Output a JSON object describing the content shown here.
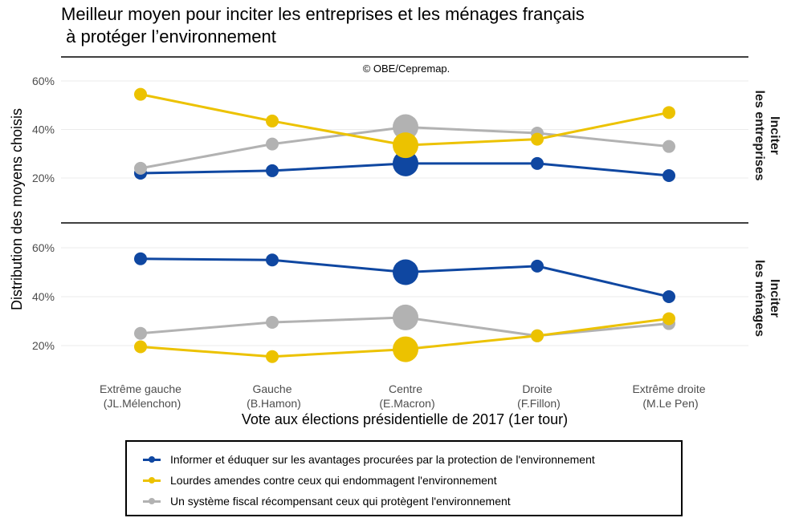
{
  "title": "Meilleur moyen pour inciter les entreprises et les ménages français\n à protéger l’environnement",
  "chart_data": {
    "type": "line",
    "title": "Meilleur moyen pour inciter les entreprises et les ménages français à protéger l’environnement",
    "caption": "© OBE/Cepremap.",
    "xlabel": "Vote aux élections présidentielle de 2017 (1er tour)",
    "ylabel": "Distribution des moyens choisis",
    "categories": [
      [
        "Extrême gauche",
        "(JL.Mélenchon)"
      ],
      [
        "Gauche",
        "(B.Hamon)"
      ],
      [
        "Centre",
        "(E.Macron)"
      ],
      [
        "Droite",
        "(F.Fillon)"
      ],
      [
        "Extrême droite",
        "(M.Le Pen)"
      ]
    ],
    "highlighted_category": 2,
    "yticks": [
      "20%",
      "40%",
      "60%"
    ],
    "ytick_values": [
      20,
      40,
      60
    ],
    "ylim": [
      9,
      66
    ],
    "panels": [
      {
        "strip_label": [
          "Inciter",
          "les entreprises"
        ],
        "series": [
          {
            "name": "Informer et éduquer sur les avantages procurées par la protection de l'environnement",
            "values": [
              22,
              23,
              26,
              26,
              21
            ]
          },
          {
            "name": "Lourdes amendes contre ceux qui endommagent l'environnement",
            "values": [
              54.5,
              43.5,
              33.5,
              36,
              47
            ]
          },
          {
            "name": "Un système fiscal récompensant ceux qui protègent l'environnement",
            "values": [
              24,
              34,
              41,
              38.5,
              33
            ]
          }
        ]
      },
      {
        "strip_label": [
          "Inciter",
          "les ménages"
        ],
        "series": [
          {
            "name": "Informer et éduquer sur les avantages procurées par la protection de l'environnement",
            "values": [
              55.5,
              55,
              50,
              52.5,
              40
            ]
          },
          {
            "name": "Lourdes amendes contre ceux qui endommagent l'environnement",
            "values": [
              19.5,
              15.5,
              18.5,
              24,
              31
            ]
          },
          {
            "name": "Un système fiscal récompensant ceux qui protègent l'environnement",
            "values": [
              25,
              29.5,
              31.5,
              24,
              29
            ]
          }
        ]
      }
    ],
    "legend": {
      "position": "bottom",
      "items": [
        {
          "label": "Informer et éduquer sur les avantages procurées par la protection de l'environnement",
          "color": "#0f47a1"
        },
        {
          "label": "Lourdes amendes contre ceux qui endommagent l'environnement",
          "color": "#ecc200"
        },
        {
          "label": "Un système fiscal récompensant ceux qui protègent l'environnement",
          "color": "#b2b2b2"
        }
      ]
    },
    "colors": [
      "#0f47a1",
      "#ecc200",
      "#b2b2b2"
    ]
  }
}
